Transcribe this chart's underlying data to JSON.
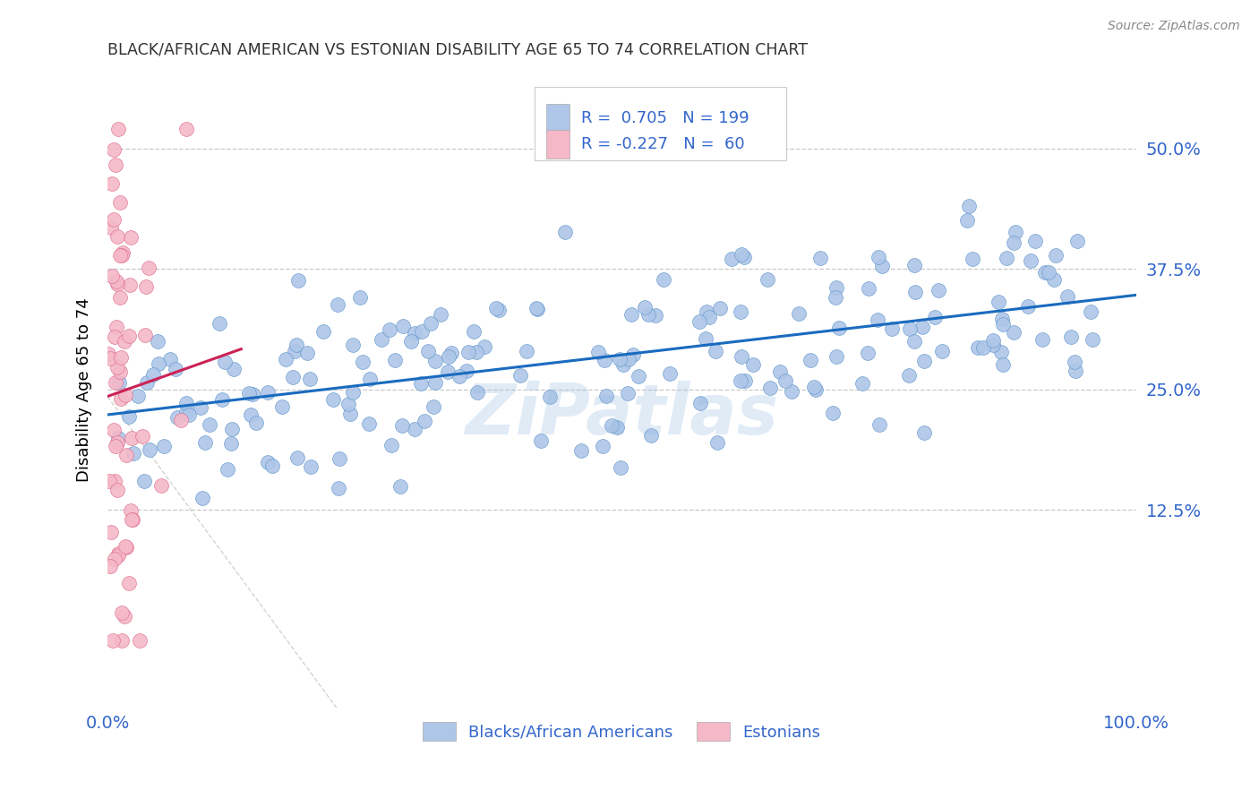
{
  "title": "BLACK/AFRICAN AMERICAN VS ESTONIAN DISABILITY AGE 65 TO 74 CORRELATION CHART",
  "source": "Source: ZipAtlas.com",
  "ylabel": "Disability Age 65 to 74",
  "watermark": "ZiPatlas",
  "blue_R": 0.705,
  "blue_N": 199,
  "pink_R": -0.227,
  "pink_N": 60,
  "blue_color": "#aec6e8",
  "pink_color": "#f4b8c8",
  "blue_edge_color": "#6699cc",
  "pink_edge_color": "#e07090",
  "blue_line_color": "#1a6bbf",
  "pink_line_color": "#cc2255",
  "dashed_line_color": "#c8c8c8",
  "title_color": "#333333",
  "axis_label_color": "#3366cc",
  "source_color": "#888888",
  "ytick_values": [
    0.125,
    0.25,
    0.375,
    0.5
  ],
  "ytick_labels": [
    "12.5%",
    "25.0%",
    "37.5%",
    "50.0%"
  ],
  "xtick_labels": [
    "0.0%",
    "100.0%"
  ],
  "xlim": [
    0.0,
    1.0
  ],
  "ylim": [
    -0.08,
    0.58
  ],
  "blue_seed": 42,
  "pink_seed": 123,
  "legend_label_blue": "Blacks/African Americans",
  "legend_label_pink": "Estonians"
}
